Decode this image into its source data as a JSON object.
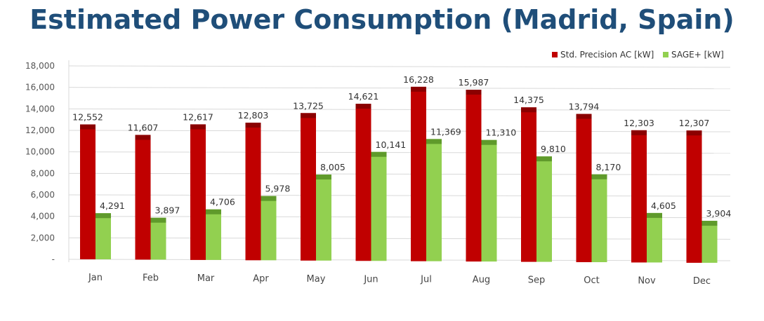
{
  "chart_data": {
    "type": "bar",
    "title": "Estimated Power Consumption (Madrid, Spain)",
    "categories": [
      "Jan",
      "Feb",
      "Mar",
      "Apr",
      "May",
      "Jun",
      "Jul",
      "Aug",
      "Sep",
      "Oct",
      "Nov",
      "Dec"
    ],
    "series": [
      {
        "name": "Std. Precision AC [kW]",
        "color": "#c00000",
        "values": [
          12552,
          11607,
          12617,
          12803,
          13725,
          14621,
          16228,
          15987,
          14375,
          13794,
          12303,
          12307
        ],
        "labels": [
          "12,552",
          "11,607",
          "12,617",
          "12,803",
          "13,725",
          "14,621",
          "16,228",
          "15,987",
          "14,375",
          "13,794",
          "12,303",
          "12,307"
        ]
      },
      {
        "name": "SAGE+ [kW]",
        "color": "#92d050",
        "values": [
          4291,
          3897,
          4706,
          5978,
          8005,
          10141,
          11369,
          11310,
          9810,
          8170,
          4605,
          3904
        ],
        "labels": [
          "4,291",
          "3,897",
          "4,706",
          "5,978",
          "8,005",
          "10,141",
          "11,369",
          "11,310",
          "9,810",
          "8,170",
          "4,605",
          "3,904"
        ]
      }
    ],
    "yticks": [
      "-",
      "2,000",
      "4,000",
      "6,000",
      "8,000",
      "10,000",
      "12,000",
      "14,000",
      "16,000",
      "18,000"
    ],
    "ylim": [
      0,
      18000
    ],
    "xlabel": "",
    "ylabel": "",
    "grid": true,
    "legend_position": "top-right"
  }
}
